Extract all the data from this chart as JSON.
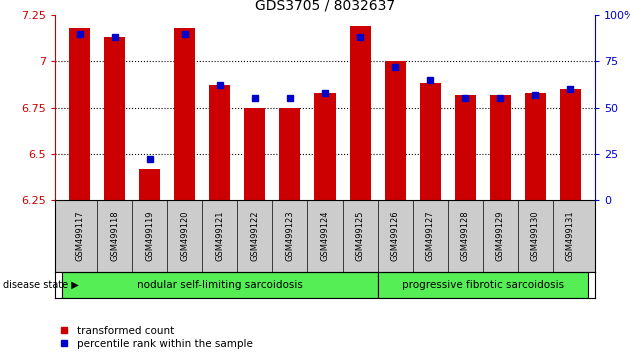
{
  "title": "GDS3705 / 8032637",
  "samples": [
    "GSM499117",
    "GSM499118",
    "GSM499119",
    "GSM499120",
    "GSM499121",
    "GSM499122",
    "GSM499123",
    "GSM499124",
    "GSM499125",
    "GSM499126",
    "GSM499127",
    "GSM499128",
    "GSM499129",
    "GSM499130",
    "GSM499131"
  ],
  "transformed_count": [
    7.18,
    7.13,
    6.42,
    7.18,
    6.87,
    6.75,
    6.75,
    6.83,
    7.19,
    7.0,
    6.88,
    6.82,
    6.82,
    6.83,
    6.85
  ],
  "percentile_rank": [
    90,
    88,
    22,
    90,
    62,
    55,
    55,
    58,
    88,
    72,
    65,
    55,
    55,
    57,
    60
  ],
  "ylim_left": [
    6.25,
    7.25
  ],
  "ylim_right": [
    0,
    100
  ],
  "bar_color": "#cc0000",
  "dot_color": "#0000cc",
  "group1_label": "nodular self-limiting sarcoidosis",
  "group2_label": "progressive fibrotic sarcoidosis",
  "group1_count": 9,
  "group2_count": 6,
  "legend_bar": "transformed count",
  "legend_dot": "percentile rank within the sample",
  "disease_state_label": "disease state",
  "group_bg_color": "#55ee55",
  "sample_bg_color": "#cccccc",
  "bar_width": 0.6,
  "left_yticks": [
    6.25,
    6.5,
    6.75,
    7.0,
    7.25
  ],
  "left_yticklabels": [
    "6.25",
    "6.5",
    "6.75",
    "7",
    "7.25"
  ],
  "right_yticks": [
    0,
    25,
    50,
    75,
    100
  ],
  "right_yticklabels": [
    "0",
    "25",
    "50",
    "75",
    "100%"
  ],
  "grid_yvals": [
    6.5,
    6.75,
    7.0
  ]
}
